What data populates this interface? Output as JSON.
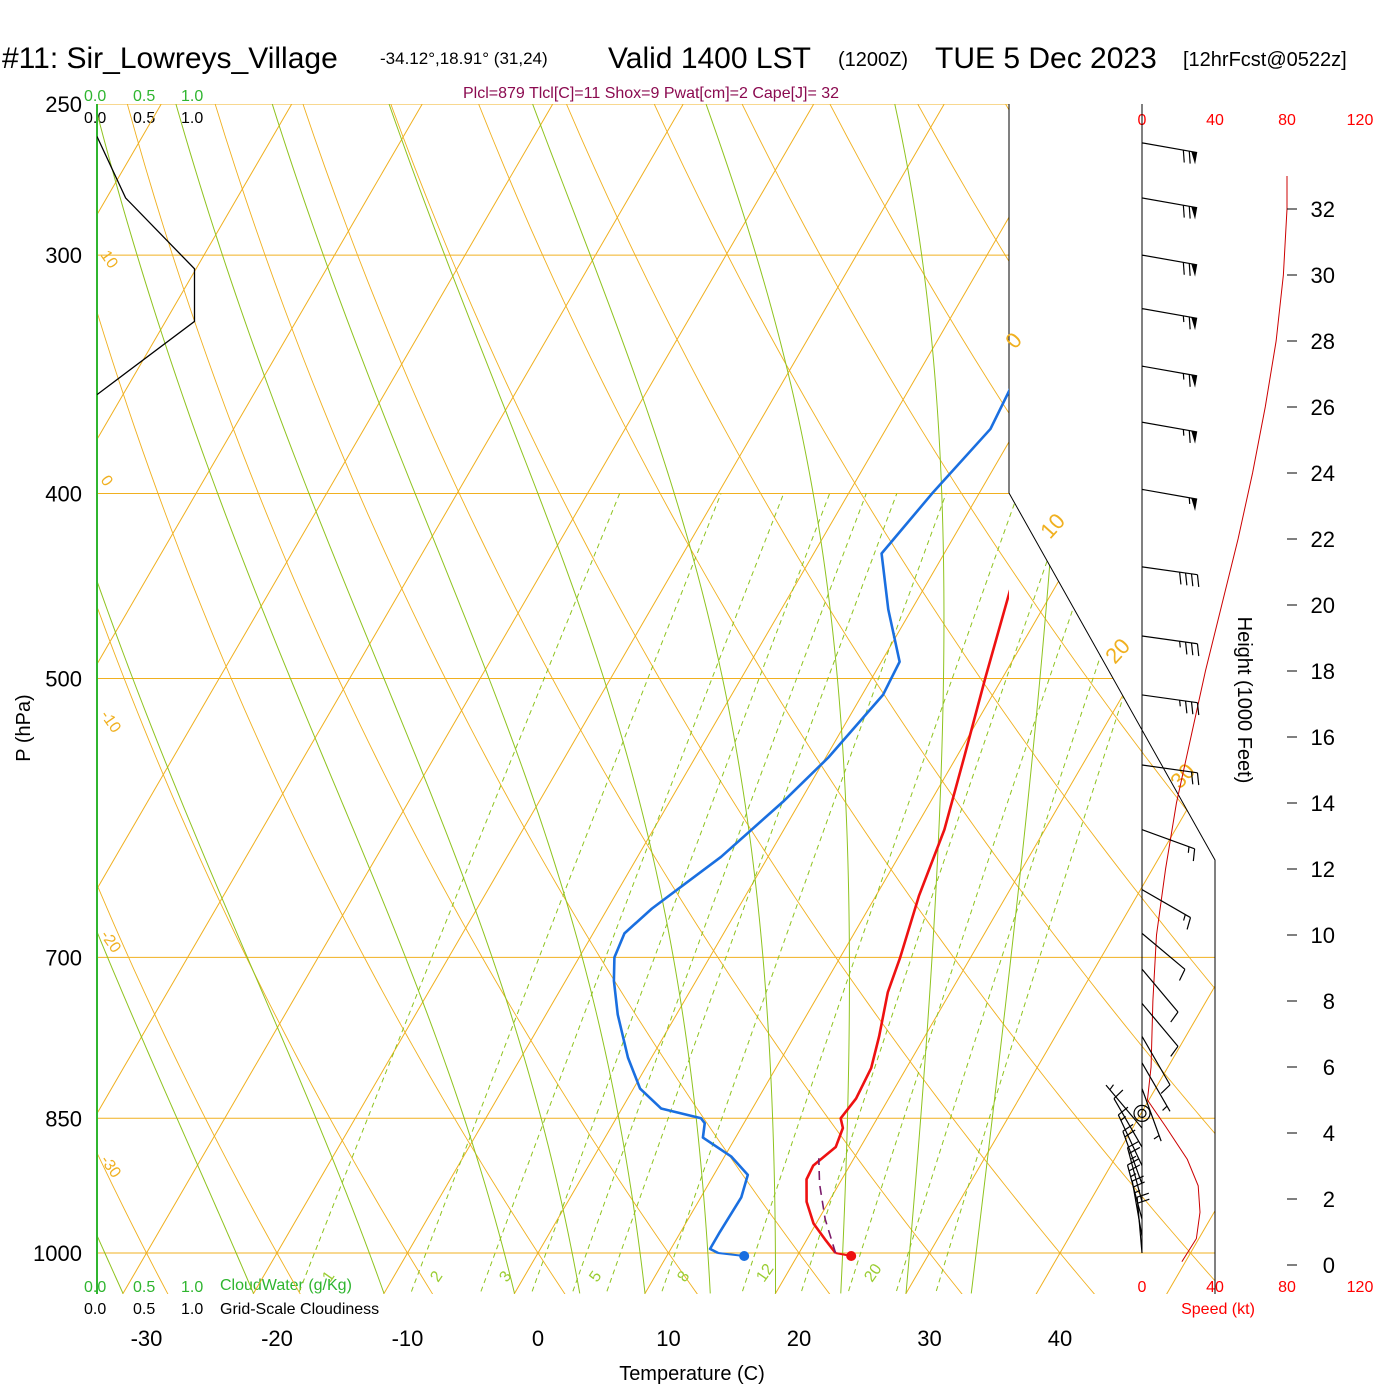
{
  "header": {
    "station": "#11: Sir_Lowreys_Village",
    "coords": "-34.12°,18.91° (31,24)",
    "valid": "Valid 1400 LST",
    "zulu": "(1200Z)",
    "date": "TUE 5 Dec 2023",
    "forecast": "[12hrFcst@0522z]",
    "indices": "Plcl=879 Tlcl[C]=11 Shox=9 Pwat[cm]=2 Cape[J]= 32"
  },
  "cloud_scales": {
    "green_values": [
      "0.0",
      "0.5",
      "1.0"
    ],
    "black_values": [
      "0.0",
      "0.5",
      "1.0"
    ],
    "cloudwater_label": "CloudWater (g/Kg)",
    "cloudiness_label": "Grid-Scale Cloudiness"
  },
  "speed_axis": {
    "ticks": [
      "0",
      "40",
      "80",
      "120"
    ],
    "label": "Speed (kt)"
  },
  "colors": {
    "temperature": "#ee1111",
    "dewpoint": "#1a6fe0",
    "isotherm": "#f0b020",
    "dry_adiabat": "#f0b020",
    "moist_adiabat": "#8fc31f",
    "mixing_ratio": "#8fc31f",
    "parcel": "#7a1a6a",
    "cloud_axis": "#2fb52f",
    "speed": "#ff0000"
  },
  "chart_data": {
    "type": "line",
    "title": "",
    "xlabel": "Temperature (C)",
    "ylabel": "P (hPa)",
    "y2label": "Height (1000 Feet)",
    "x_ticks": [
      -30,
      -20,
      -10,
      0,
      10,
      20,
      30,
      40
    ],
    "pressure_ticks": [
      250,
      300,
      400,
      500,
      700,
      850,
      1000
    ],
    "height_ticks_kft": [
      0,
      2,
      4,
      6,
      8,
      10,
      12,
      14,
      16,
      18,
      20,
      22,
      24,
      26,
      28,
      30,
      32
    ],
    "isotherm_labels": [
      "10",
      "0",
      "-10",
      "-20",
      "-30"
    ],
    "dry_adiabat_labels": [
      "0",
      "10",
      "20",
      "30"
    ],
    "mixing_ratio_labels": [
      "1",
      "2",
      "3",
      "5",
      "8",
      "12",
      "20"
    ],
    "mixing_ratio_values": [
      1,
      2,
      3,
      5,
      8,
      12,
      20
    ],
    "series": [
      {
        "name": "",
        "kind": "temperature",
        "points": [
          {
            "p": 1000,
            "t": 22.8
          },
          {
            "p": 985,
            "t": 21.5
          },
          {
            "p": 965,
            "t": 19.8
          },
          {
            "p": 940,
            "t": 18.3
          },
          {
            "p": 915,
            "t": 17.3
          },
          {
            "p": 900,
            "t": 17.2
          },
          {
            "p": 880,
            "t": 18.1
          },
          {
            "p": 860,
            "t": 17.8
          },
          {
            "p": 850,
            "t": 17.2
          },
          {
            "p": 830,
            "t": 17.5
          },
          {
            "p": 800,
            "t": 17.3
          },
          {
            "p": 770,
            "t": 16.5
          },
          {
            "p": 730,
            "t": 15.2
          },
          {
            "p": 700,
            "t": 14.6
          },
          {
            "p": 650,
            "t": 13.3
          },
          {
            "p": 600,
            "t": 12.3
          },
          {
            "p": 550,
            "t": 10.6
          },
          {
            "p": 500,
            "t": 8.7
          },
          {
            "p": 450,
            "t": 6.7
          },
          {
            "p": 400,
            "t": 4.8
          },
          {
            "p": 350,
            "t": 2.8
          },
          {
            "p": 300,
            "t": 0.5
          },
          {
            "p": 285,
            "t": -0.3
          },
          {
            "p": 265,
            "t": -0.8
          }
        ]
      },
      {
        "name": "",
        "kind": "dewpoint",
        "points": [
          {
            "p": 1000,
            "dp": 13.8
          },
          {
            "p": 995,
            "dp": 13.0
          },
          {
            "p": 975,
            "dp": 13.0
          },
          {
            "p": 935,
            "dp": 13.1
          },
          {
            "p": 910,
            "dp": 12.6
          },
          {
            "p": 890,
            "dp": 10.5
          },
          {
            "p": 870,
            "dp": 7.5
          },
          {
            "p": 855,
            "dp": 7.0
          },
          {
            "p": 850,
            "dp": 6.5
          },
          {
            "p": 840,
            "dp": 3.0
          },
          {
            "p": 820,
            "dp": 0.5
          },
          {
            "p": 790,
            "dp": -1.8
          },
          {
            "p": 750,
            "dp": -4.5
          },
          {
            "p": 720,
            "dp": -6.3
          },
          {
            "p": 700,
            "dp": -7.3
          },
          {
            "p": 680,
            "dp": -7.6
          },
          {
            "p": 660,
            "dp": -6.6
          },
          {
            "p": 620,
            "dp": -3.6
          },
          {
            "p": 580,
            "dp": -1.3
          },
          {
            "p": 550,
            "dp": 0.2
          },
          {
            "p": 510,
            "dp": 1.6
          },
          {
            "p": 490,
            "dp": 1.4
          },
          {
            "p": 460,
            "dp": -1.8
          },
          {
            "p": 430,
            "dp": -4.8
          },
          {
            "p": 400,
            "dp": -3.6
          },
          {
            "p": 370,
            "dp": -2.0
          },
          {
            "p": 345,
            "dp": -2.4
          },
          {
            "p": 330,
            "dp": -3.0
          },
          {
            "p": 300,
            "dp": -4.8
          },
          {
            "p": 280,
            "dp": -6.0
          },
          {
            "p": 265,
            "dp": -7.0
          }
        ]
      }
    ],
    "surface_points": {
      "t": 24.0,
      "dp": 15.8,
      "p": 1000
    },
    "parcel_path": [
      {
        "p": 1000,
        "t": 22.8
      },
      {
        "p": 960,
        "t": 20.5
      },
      {
        "p": 920,
        "t": 18.5
      },
      {
        "p": 892,
        "t": 17.3
      }
    ],
    "cloudiness_profile": [
      {
        "p": 260,
        "c": 0.0
      },
      {
        "p": 280,
        "c": 0.22
      },
      {
        "p": 305,
        "c": 0.75
      },
      {
        "p": 325,
        "c": 0.75
      },
      {
        "p": 355,
        "c": 0.0
      }
    ],
    "height_curve": [
      {
        "kft": 0,
        "p": 1000
      },
      {
        "kft": 2,
        "p": 935
      },
      {
        "kft": 4,
        "p": 870
      },
      {
        "kft": 6,
        "p": 810
      },
      {
        "kft": 8,
        "p": 755
      },
      {
        "kft": 10,
        "p": 700
      },
      {
        "kft": 12,
        "p": 650
      },
      {
        "kft": 14,
        "p": 600
      },
      {
        "kft": 16,
        "p": 555
      },
      {
        "kft": 18,
        "p": 510
      },
      {
        "kft": 20,
        "p": 470
      },
      {
        "kft": 22,
        "p": 430
      },
      {
        "kft": 24,
        "p": 395
      },
      {
        "kft": 26,
        "p": 360
      },
      {
        "kft": 28,
        "p": 330
      },
      {
        "kft": 30,
        "p": 300
      },
      {
        "kft": 32,
        "p": 275
      }
    ],
    "wind_speed_profile": [
      {
        "kft": 0.1,
        "kt": 22
      },
      {
        "kft": 0.8,
        "kt": 30
      },
      {
        "kft": 1.6,
        "kt": 32
      },
      {
        "kft": 2.4,
        "kt": 31
      },
      {
        "kft": 3.2,
        "kt": 25
      },
      {
        "kft": 4.2,
        "kt": 13
      },
      {
        "kft": 5.0,
        "kt": 3
      },
      {
        "kft": 6.0,
        "kt": 5
      },
      {
        "kft": 8.0,
        "kt": 6
      },
      {
        "kft": 10.0,
        "kt": 8
      },
      {
        "kft": 12.0,
        "kt": 13
      },
      {
        "kft": 14.0,
        "kt": 19
      },
      {
        "kft": 16.0,
        "kt": 27
      },
      {
        "kft": 18.0,
        "kt": 35
      },
      {
        "kft": 20.0,
        "kt": 44
      },
      {
        "kft": 22.0,
        "kt": 53
      },
      {
        "kft": 24.0,
        "kt": 61
      },
      {
        "kft": 26.0,
        "kt": 68
      },
      {
        "kft": 28.0,
        "kt": 74
      },
      {
        "kft": 30.0,
        "kt": 78
      },
      {
        "kft": 32.0,
        "kt": 80
      },
      {
        "kft": 33.0,
        "kt": 80
      }
    ],
    "wind_barbs": [
      {
        "p": 262,
        "dir": 280,
        "kt": 70
      },
      {
        "p": 280,
        "dir": 280,
        "kt": 70
      },
      {
        "p": 300,
        "dir": 280,
        "kt": 70
      },
      {
        "p": 320,
        "dir": 280,
        "kt": 65
      },
      {
        "p": 343,
        "dir": 280,
        "kt": 65
      },
      {
        "p": 367,
        "dir": 280,
        "kt": 65
      },
      {
        "p": 398,
        "dir": 280,
        "kt": 55
      },
      {
        "p": 437,
        "dir": 278,
        "kt": 40
      },
      {
        "p": 475,
        "dir": 278,
        "kt": 35
      },
      {
        "p": 510,
        "dir": 278,
        "kt": 35
      },
      {
        "p": 555,
        "dir": 278,
        "kt": 20
      },
      {
        "p": 600,
        "dir": 290,
        "kt": 15
      },
      {
        "p": 645,
        "dir": 300,
        "kt": 15
      },
      {
        "p": 680,
        "dir": 310,
        "kt": 10
      },
      {
        "p": 710,
        "dir": 320,
        "kt": 10
      },
      {
        "p": 740,
        "dir": 320,
        "kt": 10
      },
      {
        "p": 770,
        "dir": 330,
        "kt": 10
      },
      {
        "p": 795,
        "dir": 330,
        "kt": 5
      },
      {
        "p": 820,
        "dir": 340,
        "kt": 5
      },
      {
        "p": 845,
        "dir": 0,
        "kt": 0
      },
      {
        "p": 860,
        "dir": 140,
        "kt": 5
      },
      {
        "p": 880,
        "dir": 150,
        "kt": 10
      },
      {
        "p": 900,
        "dir": 155,
        "kt": 15
      },
      {
        "p": 920,
        "dir": 160,
        "kt": 20
      },
      {
        "p": 940,
        "dir": 165,
        "kt": 25
      },
      {
        "p": 960,
        "dir": 165,
        "kt": 25
      },
      {
        "p": 980,
        "dir": 170,
        "kt": 25
      },
      {
        "p": 1000,
        "dir": 175,
        "kt": 20
      }
    ]
  }
}
